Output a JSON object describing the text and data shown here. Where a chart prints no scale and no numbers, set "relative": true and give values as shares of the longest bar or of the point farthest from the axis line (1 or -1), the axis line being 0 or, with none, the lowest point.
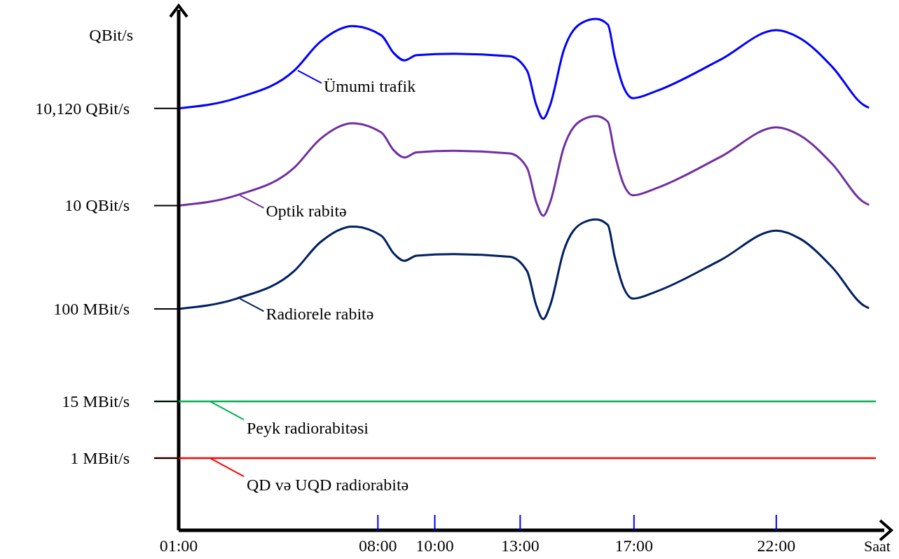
{
  "chart_data": {
    "type": "line",
    "ylabel": "QBit/s",
    "xlabel": "Saat",
    "xlim": [
      1,
      25.5
    ],
    "relative": true,
    "xticks": [
      {
        "value": 1,
        "label": "01:00"
      },
      {
        "value": 8,
        "label": "08:00"
      },
      {
        "value": 10,
        "label": "10:00"
      },
      {
        "value": 13,
        "label": "13:00"
      },
      {
        "value": 17,
        "label": "17:00"
      },
      {
        "value": 22,
        "label": "22:00"
      }
    ],
    "annotations": [
      "10,120 QBit/s",
      "10 QBit/s",
      "100 MBit/s",
      "15 MBit/s",
      "1 MBit/s"
    ],
    "ref_lines": [
      {
        "axis": "y",
        "value": 0.252,
        "label": "Peyk radiorabitəsi",
        "color": "#00b050"
      },
      {
        "axis": "y",
        "value": 0.141,
        "label": "QD və UQD radiorabitə",
        "color": "#ff0000"
      }
    ],
    "grid": false,
    "legend": "top left",
    "marker": "none",
    "line_style": "solid",
    "x": [
      1,
      3.03,
      5.06,
      5.97,
      7.1,
      8.12,
      8.56,
      8.93,
      9.36,
      10.68,
      12.63,
      13.24,
      13.57,
      13.81,
      14.05,
      14.54,
      15.19,
      15.67,
      16.08,
      16.32,
      16.64,
      16.97,
      17.79,
      20.03,
      22,
      22.84,
      23.97,
      25.09,
      25.23
    ],
    "series": [
      {
        "name": "Ümumi trafik",
        "color": "#0000ff",
        "values": [
          0.825,
          0.845,
          0.899,
          0.955,
          0.986,
          0.968,
          0.933,
          0.919,
          0.929,
          0.932,
          0.927,
          0.899,
          0.831,
          0.805,
          0.831,
          0.94,
          0.993,
          1,
          0.989,
          0.927,
          0.866,
          0.845,
          0.859,
          0.92,
          0.978,
          0.962,
          0.906,
          0.831,
          0.827
        ]
      },
      {
        "name": "Optik rabitə",
        "color": "#7030a0",
        "values": [
          0.635,
          0.655,
          0.709,
          0.765,
          0.796,
          0.778,
          0.743,
          0.729,
          0.739,
          0.742,
          0.737,
          0.709,
          0.641,
          0.615,
          0.641,
          0.75,
          0.803,
          0.81,
          0.799,
          0.737,
          0.676,
          0.655,
          0.669,
          0.73,
          0.788,
          0.772,
          0.716,
          0.641,
          0.637
        ]
      },
      {
        "name": "Radiorele rabitə",
        "color": "#002060",
        "values": [
          0.433,
          0.453,
          0.507,
          0.563,
          0.594,
          0.576,
          0.541,
          0.527,
          0.537,
          0.54,
          0.535,
          0.507,
          0.439,
          0.413,
          0.439,
          0.548,
          0.601,
          0.608,
          0.597,
          0.535,
          0.474,
          0.453,
          0.467,
          0.528,
          0.586,
          0.57,
          0.514,
          0.439,
          0.435
        ]
      }
    ]
  }
}
